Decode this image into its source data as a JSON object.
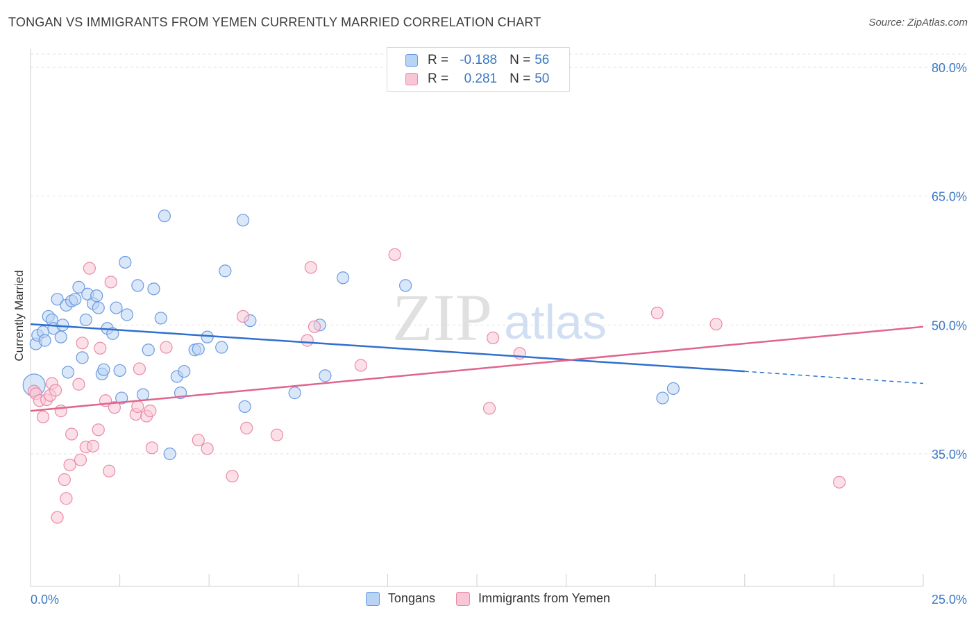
{
  "header": {
    "title": "TONGAN VS IMMIGRANTS FROM YEMEN CURRENTLY MARRIED CORRELATION CHART",
    "source": "Source: ZipAtlas.com"
  },
  "watermark": {
    "zip": "ZIP",
    "atlas": "atlas"
  },
  "legend_stats": [
    {
      "r_label": "R = ",
      "r_value": "-0.188",
      "n_label": "N = ",
      "n_value": "56",
      "fill": "#b9d3f4",
      "stroke": "#6a9be0"
    },
    {
      "r_label": "R = ",
      "r_value": "0.281",
      "n_label": "N = ",
      "n_value": "50",
      "fill": "#f9c6d6",
      "stroke": "#ea8aa8"
    }
  ],
  "bottom_legend": [
    {
      "label": "Tongans",
      "fill": "#b9d3f4",
      "stroke": "#6a9be0"
    },
    {
      "label": "Immigrants from Yemen",
      "fill": "#f9c6d6",
      "stroke": "#ea8aa8"
    }
  ],
  "chart_data": {
    "type": "scatter",
    "ylabel": "Currently Married",
    "xlim": [
      0,
      25
    ],
    "ylim": [
      20,
      83
    ],
    "x_tick_labels": [
      {
        "value": 0,
        "label": "0.0%"
      },
      {
        "value": 25,
        "label": "25.0%"
      }
    ],
    "y_tick_labels": [
      {
        "value": 80,
        "label": "80.0%"
      },
      {
        "value": 65,
        "label": "65.0%"
      },
      {
        "value": 50,
        "label": "50.0%"
      },
      {
        "value": 35,
        "label": "35.0%"
      }
    ],
    "grid": "horizontal dashed",
    "series": [
      {
        "name": "Tongans",
        "color": "#6a9be0",
        "fill": "#b9d3f4",
        "trend": {
          "x0": 0,
          "y0": 50.1,
          "x1": 20,
          "y1": 44.6,
          "dash_to_x": 25,
          "dash_to_y": 43.2,
          "color": "#2f6fce"
        },
        "points": [
          [
            0.1,
            43.0
          ],
          [
            0.15,
            47.8
          ],
          [
            0.2,
            48.8
          ],
          [
            0.35,
            49.2
          ],
          [
            0.4,
            48.2
          ],
          [
            0.5,
            51.0
          ],
          [
            0.6,
            50.6
          ],
          [
            0.65,
            49.6
          ],
          [
            0.75,
            53.0
          ],
          [
            0.85,
            48.6
          ],
          [
            0.9,
            50.0
          ],
          [
            1.0,
            52.3
          ],
          [
            1.05,
            44.5
          ],
          [
            1.15,
            52.8
          ],
          [
            1.25,
            53.0
          ],
          [
            1.35,
            54.4
          ],
          [
            1.45,
            46.2
          ],
          [
            1.55,
            50.6
          ],
          [
            1.6,
            53.6
          ],
          [
            1.75,
            52.5
          ],
          [
            1.85,
            53.4
          ],
          [
            1.9,
            52.0
          ],
          [
            2.0,
            44.3
          ],
          [
            2.05,
            44.8
          ],
          [
            2.15,
            49.6
          ],
          [
            2.3,
            49.0
          ],
          [
            2.4,
            52.0
          ],
          [
            2.5,
            44.7
          ],
          [
            2.55,
            41.5
          ],
          [
            2.65,
            57.3
          ],
          [
            2.7,
            51.2
          ],
          [
            3.0,
            54.6
          ],
          [
            3.15,
            41.9
          ],
          [
            3.3,
            47.1
          ],
          [
            3.45,
            54.2
          ],
          [
            3.65,
            50.8
          ],
          [
            3.75,
            62.7
          ],
          [
            3.9,
            35.0
          ],
          [
            4.1,
            44.0
          ],
          [
            4.2,
            42.1
          ],
          [
            4.3,
            44.6
          ],
          [
            4.6,
            47.1
          ],
          [
            4.7,
            47.2
          ],
          [
            4.95,
            48.6
          ],
          [
            5.35,
            47.4
          ],
          [
            5.45,
            56.3
          ],
          [
            5.95,
            62.2
          ],
          [
            6.0,
            40.5
          ],
          [
            6.15,
            50.5
          ],
          [
            7.4,
            42.1
          ],
          [
            8.1,
            50.0
          ],
          [
            8.25,
            44.1
          ],
          [
            8.75,
            55.5
          ],
          [
            10.5,
            54.6
          ],
          [
            17.7,
            41.5
          ],
          [
            18.0,
            42.6
          ]
        ]
      },
      {
        "name": "Immigrants from Yemen",
        "color": "#ea8aa8",
        "fill": "#f9c6d6",
        "trend": {
          "x0": 0,
          "y0": 40.0,
          "x1": 25,
          "y1": 49.8,
          "color": "#e0648e"
        },
        "points": [
          [
            0.1,
            42.3
          ],
          [
            0.15,
            42.0
          ],
          [
            0.25,
            41.2
          ],
          [
            0.35,
            39.3
          ],
          [
            0.45,
            41.3
          ],
          [
            0.55,
            41.8
          ],
          [
            0.6,
            43.2
          ],
          [
            0.7,
            42.4
          ],
          [
            0.75,
            27.6
          ],
          [
            0.85,
            40.0
          ],
          [
            0.95,
            32.0
          ],
          [
            1.0,
            29.8
          ],
          [
            1.1,
            33.7
          ],
          [
            1.15,
            37.3
          ],
          [
            1.35,
            43.1
          ],
          [
            1.4,
            34.3
          ],
          [
            1.45,
            47.9
          ],
          [
            1.55,
            35.8
          ],
          [
            1.65,
            56.6
          ],
          [
            1.75,
            35.9
          ],
          [
            1.9,
            37.8
          ],
          [
            1.95,
            47.3
          ],
          [
            2.1,
            41.2
          ],
          [
            2.2,
            33.0
          ],
          [
            2.25,
            55.0
          ],
          [
            2.35,
            40.4
          ],
          [
            2.95,
            39.6
          ],
          [
            3.0,
            40.5
          ],
          [
            3.05,
            44.9
          ],
          [
            3.25,
            39.4
          ],
          [
            3.35,
            40.0
          ],
          [
            3.4,
            35.7
          ],
          [
            3.8,
            47.4
          ],
          [
            4.7,
            36.6
          ],
          [
            4.95,
            35.6
          ],
          [
            5.65,
            32.4
          ],
          [
            5.95,
            51.0
          ],
          [
            6.05,
            38.0
          ],
          [
            6.9,
            37.2
          ],
          [
            7.75,
            48.2
          ],
          [
            7.85,
            56.7
          ],
          [
            7.95,
            49.8
          ],
          [
            9.25,
            45.3
          ],
          [
            10.2,
            58.2
          ],
          [
            12.85,
            40.3
          ],
          [
            12.95,
            48.5
          ],
          [
            13.7,
            46.7
          ],
          [
            17.55,
            51.4
          ],
          [
            19.2,
            50.1
          ],
          [
            22.65,
            31.7
          ]
        ]
      }
    ]
  }
}
